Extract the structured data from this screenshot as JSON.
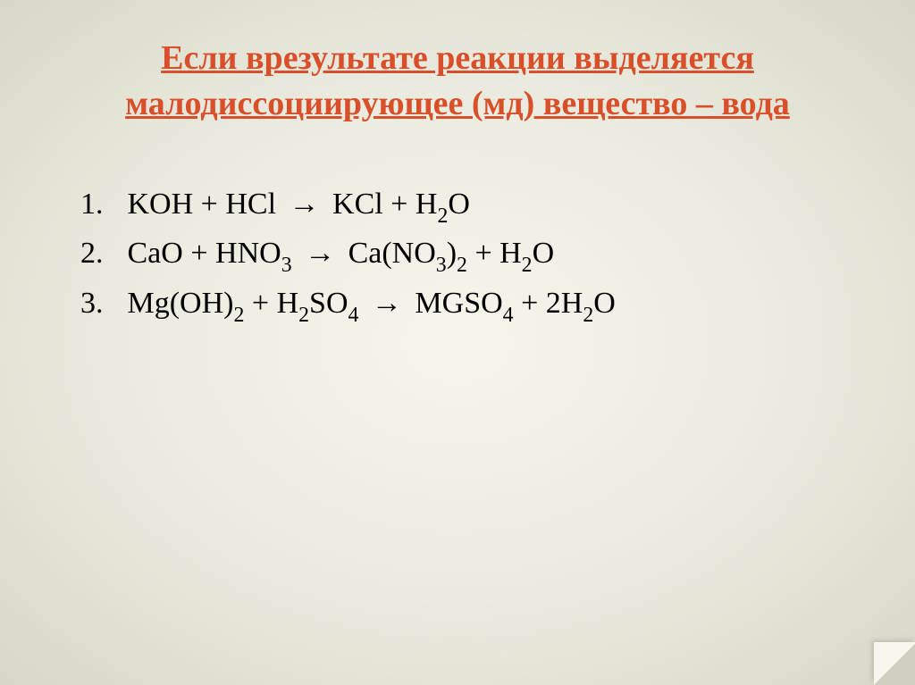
{
  "slide": {
    "background_gradient": {
      "inner": "#f5f5ec",
      "mid": "#ebebe0",
      "outer": "#d8d8c8"
    },
    "title": {
      "text": "Если врезультате реакции выделяется малодиссоциирующее (мд) вещество – вода",
      "color": "#d94f2a",
      "fontsize": 38,
      "fontweight": "bold",
      "underline": true,
      "align": "center"
    },
    "equations": {
      "fontsize": 34,
      "color": "#000000",
      "items": [
        {
          "num": "1.",
          "lhs_a": "KOH",
          "plus1": "  +",
          "lhs_b_pre": " HCl  ",
          "arrow": "→",
          "rhs_a": " KCl + H",
          "rhs_a_sub": "2",
          "rhs_a_tail": "O"
        },
        {
          "num": "2.",
          "lhs_a": "CaO",
          "plus1": "  +",
          "lhs_b_pre": " HNO",
          "lhs_b_sub": "3",
          "lhs_b_post": "  ",
          "arrow": "→",
          "rhs_a": " Ca(NO",
          "rhs_a_sub": "3",
          "rhs_a_mid": ")",
          "rhs_a_sub2": "2",
          "rhs_b": "  + H",
          "rhs_b_sub": "2",
          "rhs_b_tail": "O"
        },
        {
          "num": "3.",
          "lhs_a": "Mg(OH)",
          "lhs_a_sub": "2",
          "plus1": "  +",
          "lhs_b_pre": " H",
          "lhs_b_sub": "2",
          "lhs_b_mid": "SO",
          "lhs_b_sub2": "4",
          "lhs_b_post": "  ",
          "arrow": "→",
          "rhs_a": " MGSO",
          "rhs_a_sub": "4",
          "rhs_b": " + 2H",
          "rhs_b_sub": "2",
          "rhs_b_tail": "O"
        }
      ]
    },
    "corner_fold": {
      "fold_light": "#f6f6ef",
      "fold_dark": "#cfcfc0"
    }
  }
}
